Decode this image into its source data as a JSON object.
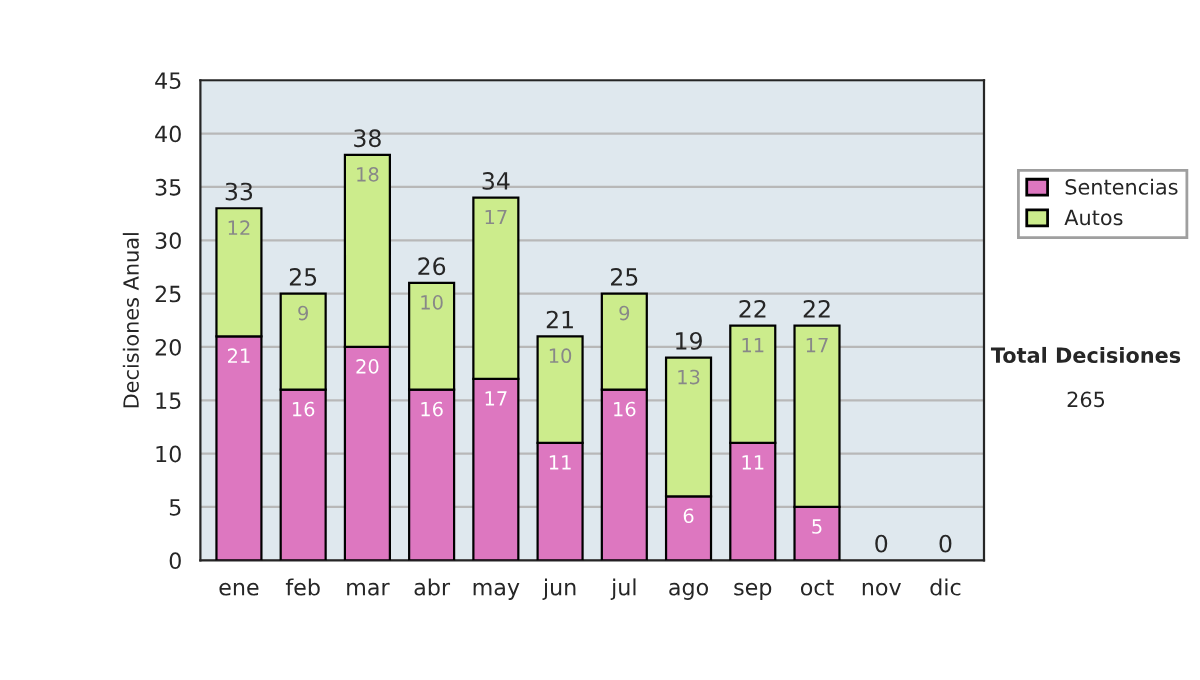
{
  "chart_data": {
    "type": "bar",
    "stacked": true,
    "ylabel": "Decisiones Anual",
    "categories": [
      "ene",
      "feb",
      "mar",
      "abr",
      "may",
      "jun",
      "jul",
      "ago",
      "sep",
      "oct",
      "nov",
      "dic"
    ],
    "series": [
      {
        "name": "Sentencias",
        "color": "#dd77c0",
        "values": [
          21,
          16,
          20,
          16,
          17,
          11,
          16,
          6,
          11,
          5,
          0,
          0
        ],
        "value_labels": [
          "21",
          "16",
          "20",
          "16",
          "17",
          "11",
          "16",
          "6",
          "11",
          "5",
          null,
          null
        ]
      },
      {
        "name": "Autos",
        "color": "#ccec8c",
        "values": [
          12,
          9,
          18,
          10,
          17,
          10,
          9,
          13,
          11,
          17,
          0,
          0
        ],
        "value_labels": [
          "12",
          "9",
          "18",
          "10",
          "17",
          "10",
          "9",
          "13",
          "11",
          "17",
          null,
          null
        ]
      }
    ],
    "totals": [
      "33",
      "25",
      "38",
      "26",
      "34",
      "21",
      "25",
      "19",
      "22",
      "22",
      "0",
      "0"
    ],
    "ylim": [
      0,
      45
    ],
    "yticks": [
      0,
      5,
      10,
      15,
      20,
      25,
      30,
      35,
      40,
      45
    ],
    "grid": "y",
    "legend": "right",
    "annotations": [
      "Total Decisiones",
      "265"
    ]
  }
}
